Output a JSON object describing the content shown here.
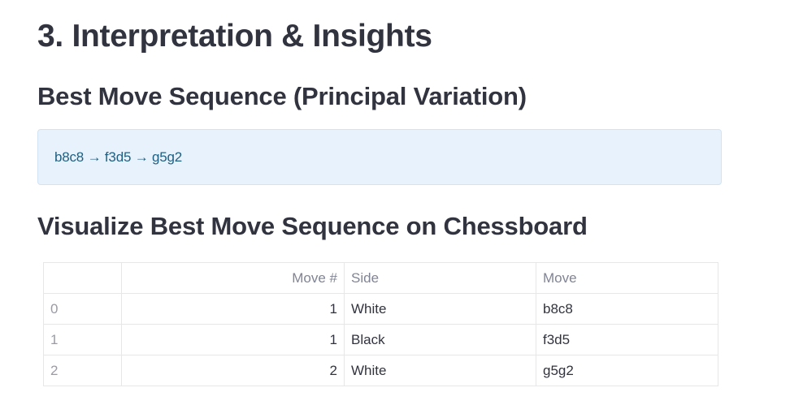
{
  "section_title": "3. Interpretation & Insights",
  "best_move": {
    "heading": "Best Move Sequence (Principal Variation)",
    "sequence": "b8c8 → f3d5 → g5g2"
  },
  "visualize": {
    "heading": "Visualize Best Move Sequence on Chessboard"
  },
  "table": {
    "columns": [
      "",
      "Move #",
      "Side",
      "Move"
    ],
    "rows": [
      {
        "index": "0",
        "move_no": "1",
        "side": "White",
        "move": "b8c8"
      },
      {
        "index": "1",
        "move_no": "1",
        "side": "Black",
        "move": "f3d5"
      },
      {
        "index": "2",
        "move_no": "2",
        "side": "White",
        "move": "g5g2"
      }
    ]
  },
  "colors": {
    "info_bg": "#e8f2fc",
    "info_text": "#1f5f82",
    "heading_text": "#31333f",
    "table_border": "#e6e7ea",
    "header_text": "#808495"
  }
}
